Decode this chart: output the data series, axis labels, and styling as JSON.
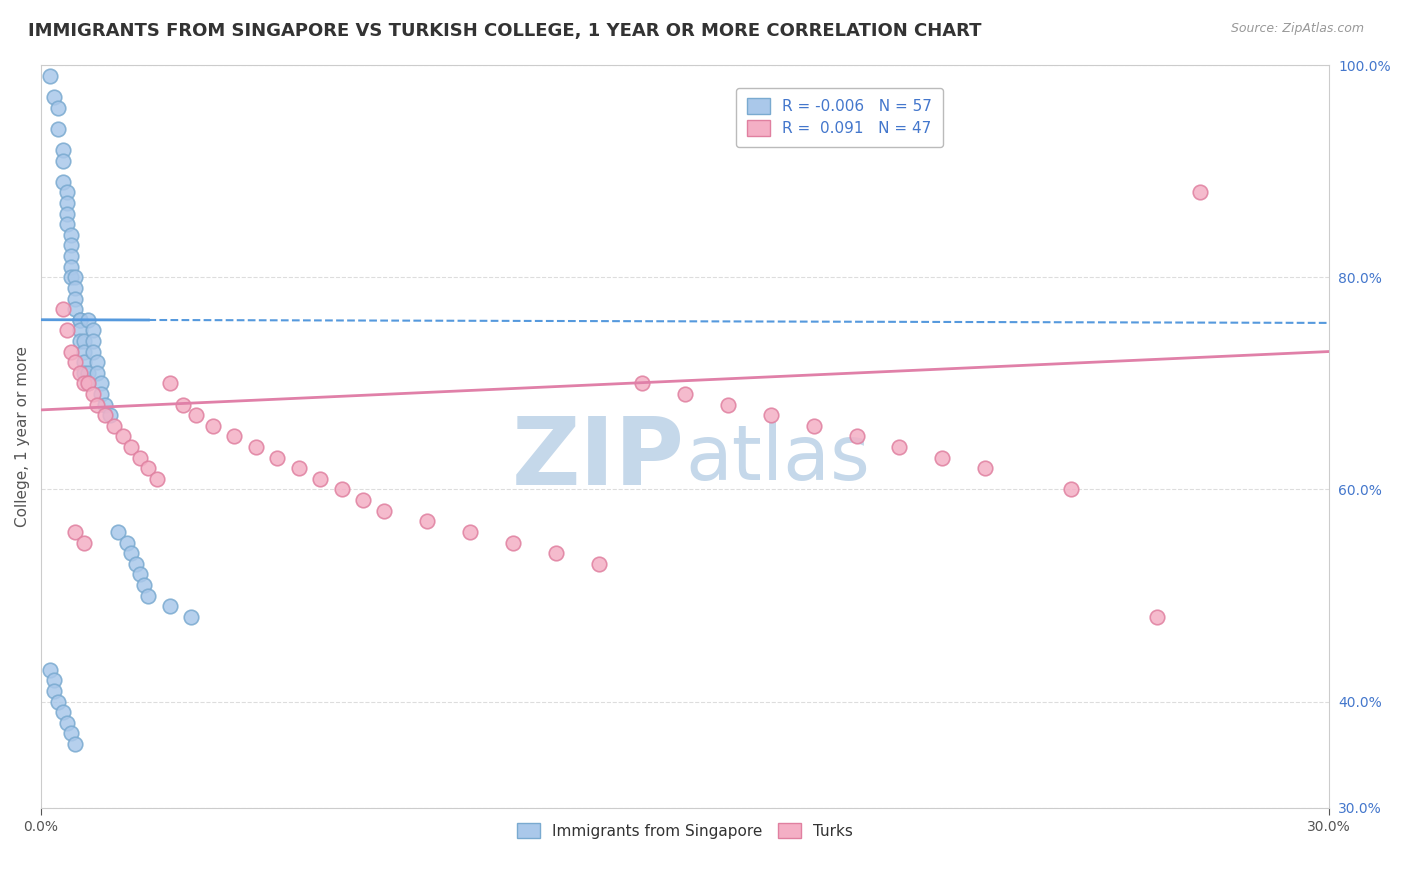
{
  "title": "IMMIGRANTS FROM SINGAPORE VS TURKISH COLLEGE, 1 YEAR OR MORE CORRELATION CHART",
  "source_text": "Source: ZipAtlas.com",
  "ylabel": "College, 1 year or more",
  "xlim": [
    0.0,
    0.3
  ],
  "ylim": [
    0.3,
    1.0
  ],
  "xtick_labels": [
    "0.0%",
    "30.0%"
  ],
  "ytick_labels": [
    "100.0%",
    "80.0%",
    "60.0%",
    "40.0%",
    "30.0%"
  ],
  "ytick_values": [
    1.0,
    0.8,
    0.6,
    0.4,
    0.3
  ],
  "xtick_values": [
    0.0,
    0.3
  ],
  "blue_R": -0.006,
  "blue_N": 57,
  "pink_R": 0.091,
  "pink_N": 47,
  "blue_color": "#aac8ea",
  "blue_edge": "#7aaad0",
  "pink_color": "#f4afc5",
  "pink_edge": "#e080a0",
  "blue_line_color": "#5599dd",
  "pink_line_color": "#e080a8",
  "watermark_zip_color": "#c5d8ea",
  "watermark_atlas_color": "#c5d8ea",
  "legend_label_blue": "Immigrants from Singapore",
  "legend_label_pink": "Turks",
  "blue_x": [
    0.002,
    0.003,
    0.004,
    0.004,
    0.005,
    0.005,
    0.005,
    0.006,
    0.006,
    0.006,
    0.006,
    0.007,
    0.007,
    0.007,
    0.007,
    0.007,
    0.008,
    0.008,
    0.008,
    0.008,
    0.009,
    0.009,
    0.009,
    0.009,
    0.01,
    0.01,
    0.01,
    0.01,
    0.011,
    0.011,
    0.011,
    0.012,
    0.012,
    0.012,
    0.013,
    0.013,
    0.014,
    0.014,
    0.015,
    0.016,
    0.018,
    0.02,
    0.021,
    0.022,
    0.023,
    0.024,
    0.025,
    0.03,
    0.035,
    0.002,
    0.003,
    0.003,
    0.004,
    0.005,
    0.006,
    0.007,
    0.008
  ],
  "blue_y": [
    0.99,
    0.97,
    0.96,
    0.94,
    0.92,
    0.91,
    0.89,
    0.88,
    0.87,
    0.86,
    0.85,
    0.84,
    0.83,
    0.82,
    0.81,
    0.8,
    0.8,
    0.79,
    0.78,
    0.77,
    0.76,
    0.76,
    0.75,
    0.74,
    0.74,
    0.73,
    0.72,
    0.71,
    0.71,
    0.7,
    0.76,
    0.75,
    0.74,
    0.73,
    0.72,
    0.71,
    0.7,
    0.69,
    0.68,
    0.67,
    0.56,
    0.55,
    0.54,
    0.53,
    0.52,
    0.51,
    0.5,
    0.49,
    0.48,
    0.43,
    0.42,
    0.41,
    0.4,
    0.39,
    0.38,
    0.37,
    0.36
  ],
  "pink_x": [
    0.005,
    0.006,
    0.007,
    0.008,
    0.009,
    0.01,
    0.011,
    0.012,
    0.013,
    0.015,
    0.017,
    0.019,
    0.021,
    0.023,
    0.025,
    0.027,
    0.03,
    0.033,
    0.036,
    0.04,
    0.045,
    0.05,
    0.055,
    0.06,
    0.065,
    0.07,
    0.075,
    0.08,
    0.09,
    0.1,
    0.11,
    0.12,
    0.13,
    0.14,
    0.15,
    0.16,
    0.17,
    0.18,
    0.19,
    0.2,
    0.21,
    0.22,
    0.24,
    0.26,
    0.27,
    0.008,
    0.01
  ],
  "pink_y": [
    0.77,
    0.75,
    0.73,
    0.72,
    0.71,
    0.7,
    0.7,
    0.69,
    0.68,
    0.67,
    0.66,
    0.65,
    0.64,
    0.63,
    0.62,
    0.61,
    0.7,
    0.68,
    0.67,
    0.66,
    0.65,
    0.64,
    0.63,
    0.62,
    0.61,
    0.6,
    0.59,
    0.58,
    0.57,
    0.56,
    0.55,
    0.54,
    0.53,
    0.7,
    0.69,
    0.68,
    0.67,
    0.66,
    0.65,
    0.64,
    0.63,
    0.62,
    0.6,
    0.48,
    0.88,
    0.56,
    0.55
  ],
  "blue_line_y0": 0.76,
  "blue_line_y1": 0.757,
  "pink_line_y0": 0.675,
  "pink_line_y1": 0.73,
  "grid_color": "#dddddd",
  "background_color": "#ffffff",
  "title_color": "#333333",
  "source_color": "#999999",
  "title_fontsize": 13,
  "axis_label_fontsize": 11,
  "tick_fontsize": 10,
  "legend_fontsize": 11,
  "dot_size": 110
}
